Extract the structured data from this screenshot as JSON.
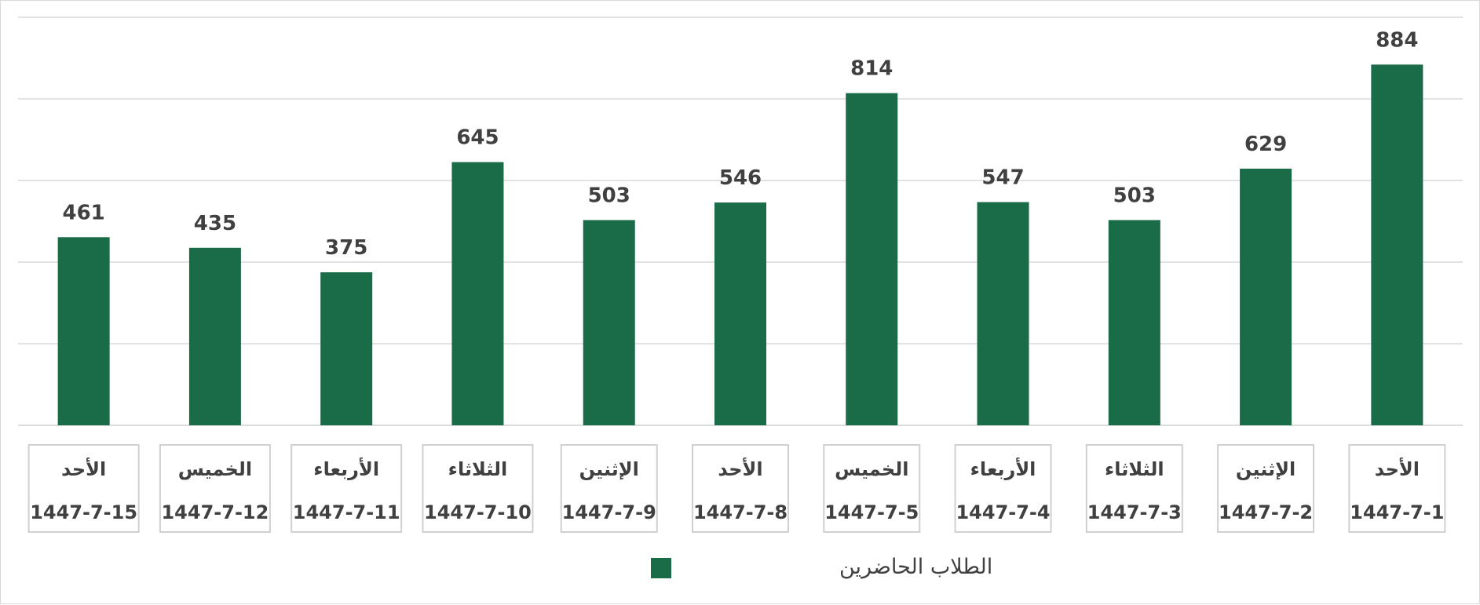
{
  "chart_data": {
    "type": "bar",
    "title": "",
    "xlabel": "",
    "ylabel": "",
    "ylim": [
      0,
      1000
    ],
    "grid": true,
    "legend_position": "bottom",
    "bar_color": "#1a6b47",
    "categories": [
      {
        "day": "الأحد",
        "date": "1447-7-1"
      },
      {
        "day": "الإثنين",
        "date": "1447-7-2"
      },
      {
        "day": "الثلاثاء",
        "date": "1447-7-3"
      },
      {
        "day": "الأربعاء",
        "date": "1447-7-4"
      },
      {
        "day": "الخميس",
        "date": "1447-7-5"
      },
      {
        "day": "الأحد",
        "date": "1447-7-8"
      },
      {
        "day": "الإثنين",
        "date": "1447-7-9"
      },
      {
        "day": "الثلاثاء",
        "date": "1447-7-10"
      },
      {
        "day": "الأربعاء",
        "date": "1447-7-11"
      },
      {
        "day": "الخميس",
        "date": "1447-7-12"
      },
      {
        "day": "الأحد",
        "date": "1447-7-15"
      }
    ],
    "series": [
      {
        "name": "الطلاب الحاضرين",
        "values": [
          884,
          629,
          503,
          547,
          814,
          546,
          503,
          645,
          375,
          435,
          461
        ]
      }
    ]
  }
}
